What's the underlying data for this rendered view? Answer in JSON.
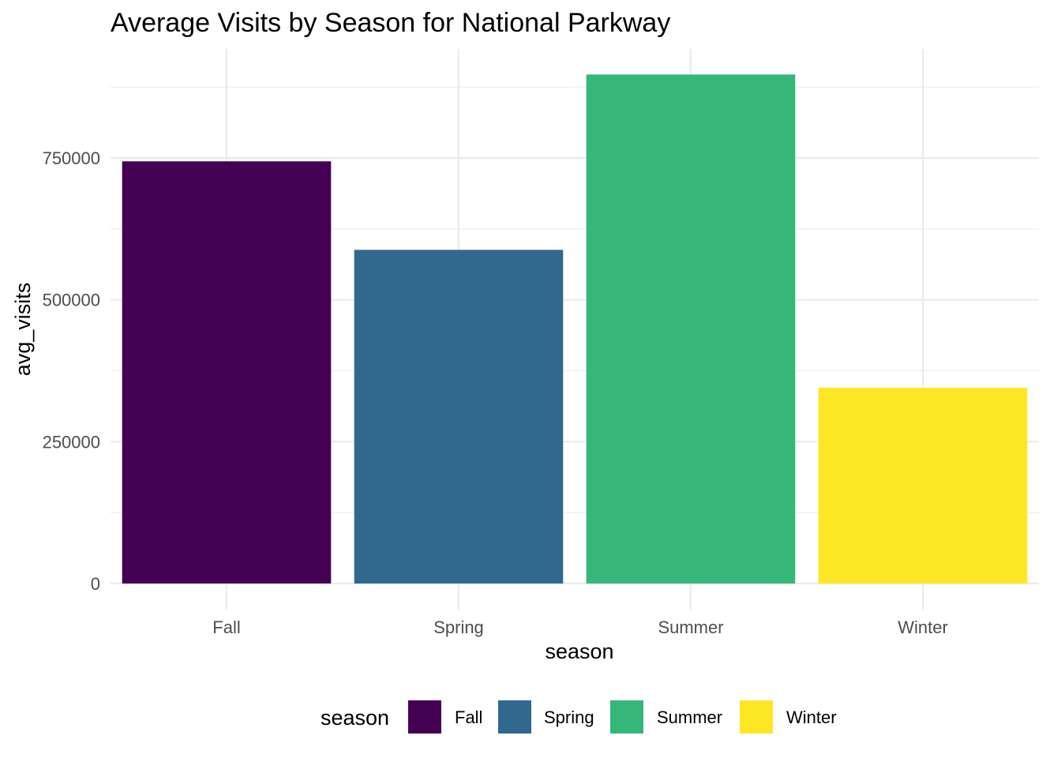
{
  "chart_data": {
    "type": "bar",
    "title": "Average Visits by Season for National Parkway",
    "xlabel": "season",
    "ylabel": "avg_visits",
    "categories": [
      "Fall",
      "Spring",
      "Summer",
      "Winter"
    ],
    "values": [
      744000,
      588000,
      897000,
      345000
    ],
    "colors": [
      "#440154",
      "#31688e",
      "#35b779",
      "#fde725"
    ],
    "ylim": [
      0,
      940000
    ],
    "yticks": [
      0,
      250000,
      500000,
      750000
    ],
    "yticks_labels": [
      "0",
      "250000",
      "500000",
      "750000"
    ],
    "grid": true,
    "legend": {
      "title": "season",
      "position": "bottom",
      "entries": [
        "Fall",
        "Spring",
        "Summer",
        "Winter"
      ]
    }
  }
}
